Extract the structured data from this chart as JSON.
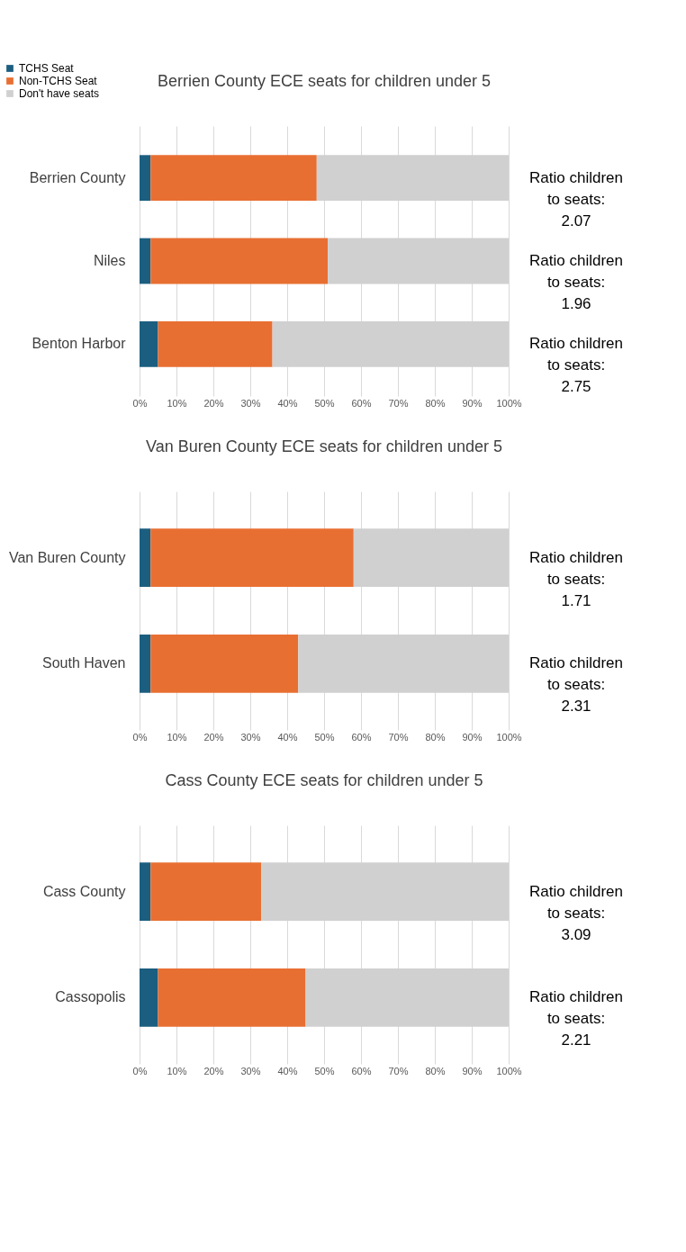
{
  "chart_data": [
    {
      "type": "bar",
      "orientation": "horizontal",
      "stacked": true,
      "title": "Berrien County ECE seats for children under 5",
      "categories": [
        "Berrien County",
        "Niles",
        "Benton Harbor"
      ],
      "series": [
        {
          "name": "TCHS Seat",
          "color": "#1b5e80",
          "values": [
            3,
            3,
            5
          ]
        },
        {
          "name": "Non-TCHS Seat",
          "color": "#e86f32",
          "values": [
            45,
            48,
            31
          ]
        },
        {
          "name": "Don't have seats",
          "color": "#d0d0d0",
          "values": [
            52,
            49,
            64
          ]
        }
      ],
      "xlim": [
        0,
        100
      ],
      "xticks": [
        {
          "value": 0,
          "label": "0%"
        },
        {
          "value": 10,
          "label": "10%"
        },
        {
          "value": 20,
          "label": "20%"
        },
        {
          "value": 30,
          "label": "30%"
        },
        {
          "value": 40,
          "label": "40%"
        },
        {
          "value": 50,
          "label": "50%"
        },
        {
          "value": 60,
          "label": "60%"
        },
        {
          "value": 70,
          "label": "70%"
        },
        {
          "value": 80,
          "label": "80%"
        },
        {
          "value": 90,
          "label": "90%"
        },
        {
          "value": 100,
          "label": "100%"
        }
      ],
      "grid": "x",
      "legend": "top left",
      "annotations": [
        "Ratio children to seats: 2.07",
        "Ratio children to seats: 1.96",
        "Ratio children to seats: 2.75"
      ]
    },
    {
      "type": "bar",
      "orientation": "horizontal",
      "stacked": true,
      "title": "Van Buren County ECE seats for children under 5",
      "categories": [
        "Van Buren County",
        "South Haven"
      ],
      "series": [
        {
          "name": "TCHS Seat",
          "color": "#1b5e80",
          "values": [
            3,
            3
          ]
        },
        {
          "name": "Non-TCHS Seat",
          "color": "#e86f32",
          "values": [
            55,
            40
          ]
        },
        {
          "name": "Don't have seats",
          "color": "#d0d0d0",
          "values": [
            42,
            57
          ]
        }
      ],
      "xlim": [
        0,
        100
      ],
      "xticks": [
        {
          "value": 0,
          "label": "0%"
        },
        {
          "value": 10,
          "label": "10%"
        },
        {
          "value": 20,
          "label": "20%"
        },
        {
          "value": 30,
          "label": "30%"
        },
        {
          "value": 40,
          "label": "40%"
        },
        {
          "value": 50,
          "label": "50%"
        },
        {
          "value": 60,
          "label": "60%"
        },
        {
          "value": 70,
          "label": "70%"
        },
        {
          "value": 80,
          "label": "80%"
        },
        {
          "value": 90,
          "label": "90%"
        },
        {
          "value": 100,
          "label": "100%"
        }
      ],
      "grid": "x",
      "legend": "top left",
      "annotations": [
        "Ratio children to seats: 1.71",
        "Ratio children to seats: 2.31"
      ]
    },
    {
      "type": "bar",
      "orientation": "horizontal",
      "stacked": true,
      "title": "Cass County ECE seats for children under 5",
      "categories": [
        "Cass County",
        "Cassopolis"
      ],
      "series": [
        {
          "name": "TCHS Seat",
          "color": "#1b5e80",
          "values": [
            3,
            5
          ]
        },
        {
          "name": "Non-TCHS Seat",
          "color": "#e86f32",
          "values": [
            30,
            40
          ]
        },
        {
          "name": "Don't have seats",
          "color": "#d0d0d0",
          "values": [
            67,
            55
          ]
        }
      ],
      "xlim": [
        0,
        100
      ],
      "xticks": [
        {
          "value": 0,
          "label": "0%"
        },
        {
          "value": 10,
          "label": "10%"
        },
        {
          "value": 20,
          "label": "20%"
        },
        {
          "value": 30,
          "label": "30%"
        },
        {
          "value": 40,
          "label": "40%"
        },
        {
          "value": 50,
          "label": "50%"
        },
        {
          "value": 60,
          "label": "60%"
        },
        {
          "value": 70,
          "label": "70%"
        },
        {
          "value": 80,
          "label": "80%"
        },
        {
          "value": 90,
          "label": "90%"
        },
        {
          "value": 100,
          "label": "100%"
        }
      ],
      "grid": "x",
      "legend": "top left",
      "annotations": [
        "Ratio children to seats: 3.09",
        "Ratio children to seats: 2.21"
      ]
    }
  ]
}
